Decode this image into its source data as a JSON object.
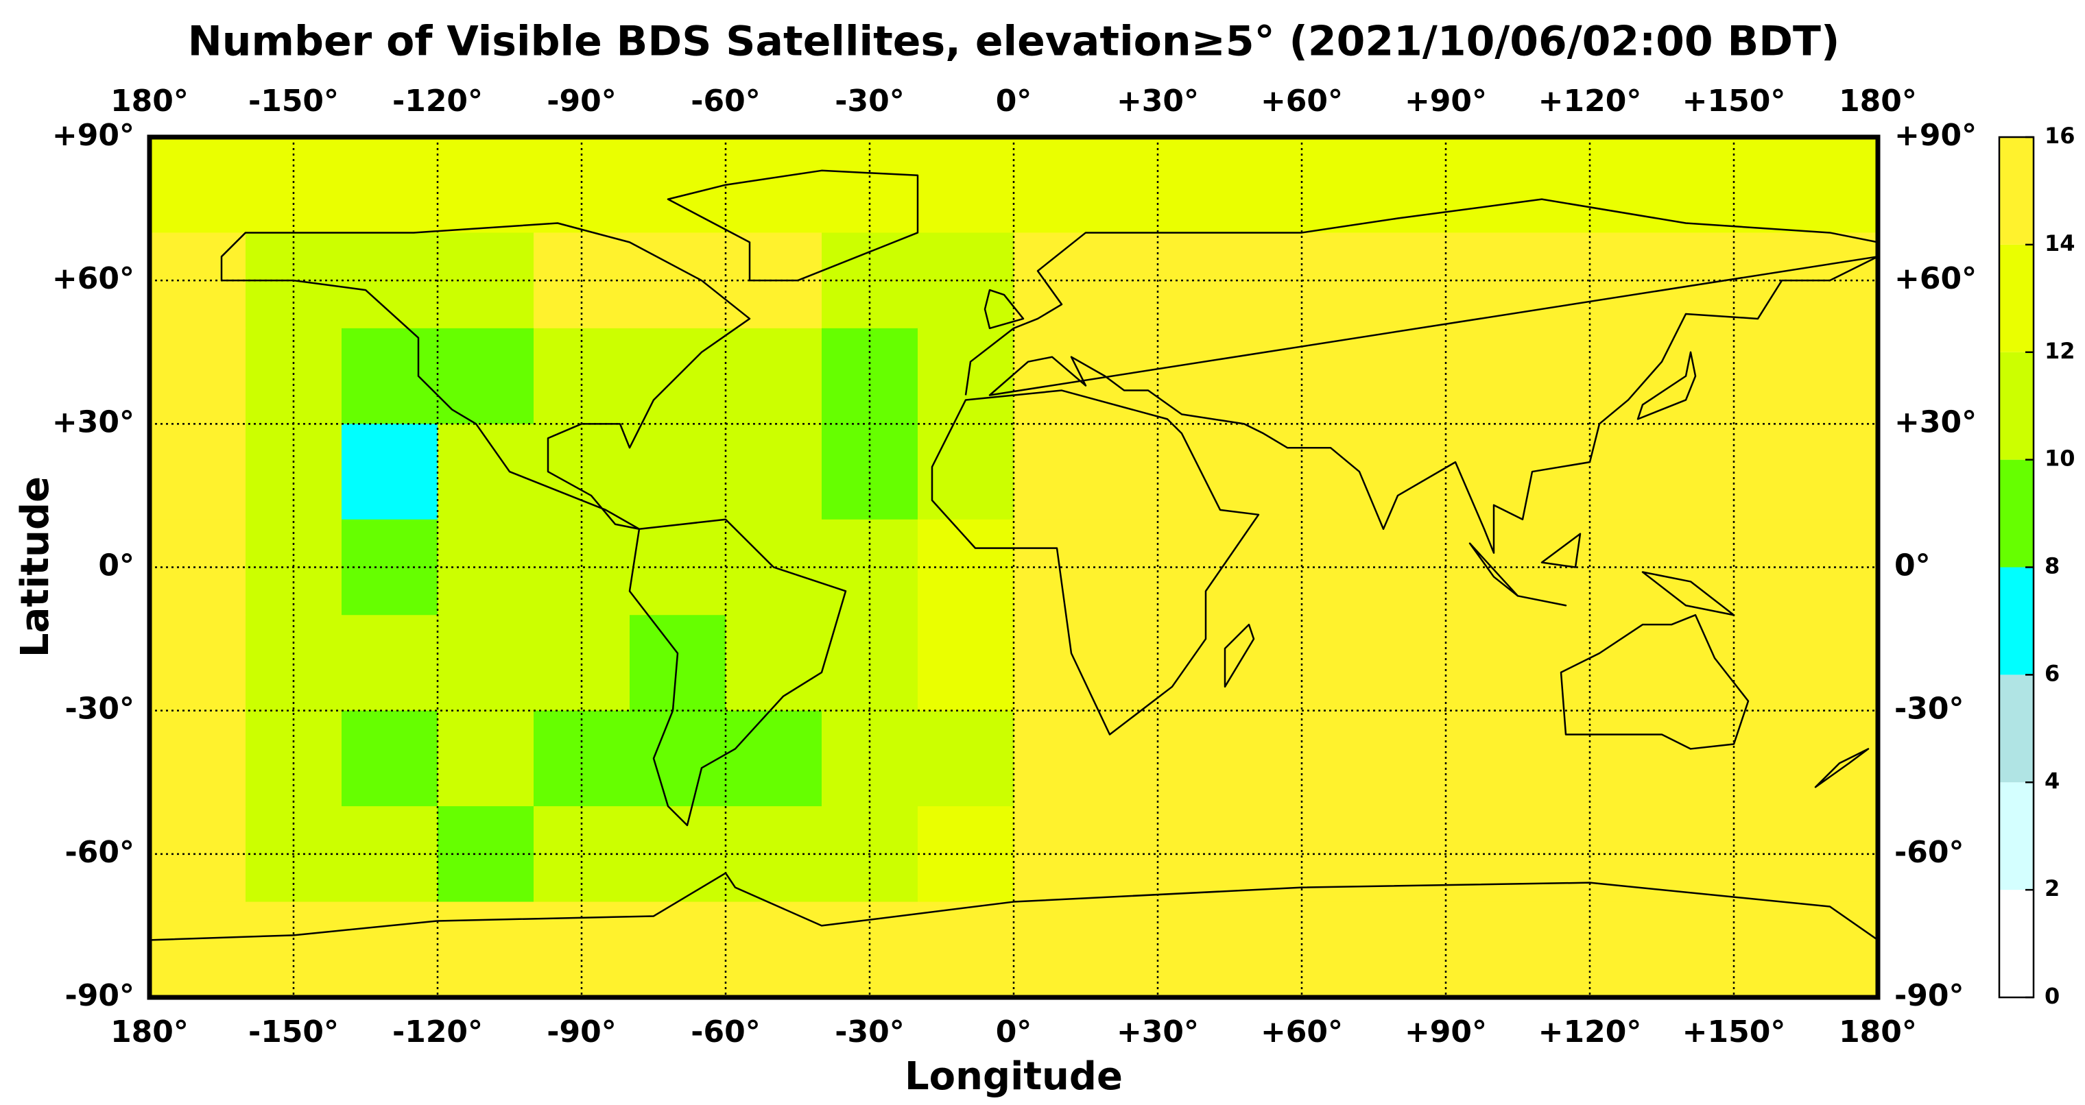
{
  "chart_data": {
    "type": "heatmap",
    "title": "Number of Visible BDS Satellites, elevation≥5° (2021/10/06/02:00 BDT)",
    "x_label": "Longitude",
    "y_label": "Latitude",
    "xlim": [
      -180,
      180
    ],
    "ylim": [
      -90,
      90
    ],
    "xticks": [
      {
        "value": -180,
        "label": "180°"
      },
      {
        "value": -150,
        "label": "-150°"
      },
      {
        "value": -120,
        "label": "-120°"
      },
      {
        "value": -90,
        "label": "-90°"
      },
      {
        "value": -60,
        "label": "-60°"
      },
      {
        "value": -30,
        "label": "-30°"
      },
      {
        "value": 0,
        "label": "0°"
      },
      {
        "value": 30,
        "label": "+30°"
      },
      {
        "value": 60,
        "label": "+60°"
      },
      {
        "value": 90,
        "label": "+90°"
      },
      {
        "value": 120,
        "label": "+120°"
      },
      {
        "value": 150,
        "label": "+150°"
      },
      {
        "value": 180,
        "label": "180°"
      }
    ],
    "yticks": [
      {
        "value": 90,
        "label": "+90°"
      },
      {
        "value": 60,
        "label": "+60°"
      },
      {
        "value": 30,
        "label": "+30°"
      },
      {
        "value": 0,
        "label": "0°"
      },
      {
        "value": -30,
        "label": "-30°"
      },
      {
        "value": -60,
        "label": "-60°"
      },
      {
        "value": -90,
        "label": "-90°"
      }
    ],
    "grid": true,
    "x": [
      -170,
      -150,
      -130,
      -110,
      -90,
      -70,
      -50,
      -30,
      -10,
      10,
      30,
      50,
      70,
      90,
      110,
      130,
      150,
      170
    ],
    "y": [
      80,
      60,
      40,
      20,
      0,
      -20,
      -40,
      -60,
      -80
    ],
    "z": [
      [
        13,
        13,
        13,
        13,
        13,
        13,
        13,
        13,
        13,
        13,
        13,
        13,
        13,
        13,
        13,
        13,
        13,
        13
      ],
      [
        15,
        11,
        11,
        11,
        15,
        15,
        15,
        11,
        11,
        15,
        15,
        15,
        15,
        15,
        15,
        15,
        15,
        15
      ],
      [
        15,
        11,
        9,
        9,
        11,
        11,
        11,
        9,
        11,
        15,
        15,
        15,
        15,
        15,
        15,
        15,
        15,
        15
      ],
      [
        15,
        11,
        7,
        11,
        11,
        11,
        11,
        9,
        11,
        15,
        15,
        15,
        15,
        15,
        15,
        15,
        15,
        15
      ],
      [
        15,
        11,
        9,
        11,
        11,
        11,
        11,
        11,
        13,
        15,
        15,
        15,
        15,
        15,
        15,
        15,
        15,
        15
      ],
      [
        15,
        11,
        11,
        11,
        11,
        9,
        11,
        11,
        13,
        15,
        15,
        15,
        15,
        15,
        15,
        15,
        15,
        15
      ],
      [
        15,
        11,
        9,
        11,
        9,
        9,
        9,
        11,
        11,
        15,
        15,
        15,
        15,
        15,
        15,
        15,
        15,
        15
      ],
      [
        15,
        11,
        11,
        9,
        11,
        11,
        11,
        11,
        13,
        15,
        15,
        15,
        15,
        15,
        15,
        15,
        15,
        15
      ],
      [
        15,
        15,
        15,
        15,
        15,
        15,
        15,
        15,
        15,
        15,
        15,
        15,
        15,
        15,
        15,
        15,
        15,
        15
      ]
    ],
    "colorbar": {
      "ticks": [
        0,
        2,
        4,
        6,
        8,
        10,
        12,
        14,
        16
      ],
      "colors": [
        "#ffffff",
        "#d4ffff",
        "#b0e4e4",
        "#00ffff",
        "#66ff00",
        "#ccff00",
        "#eaff00",
        "#fff22d"
      ]
    }
  }
}
